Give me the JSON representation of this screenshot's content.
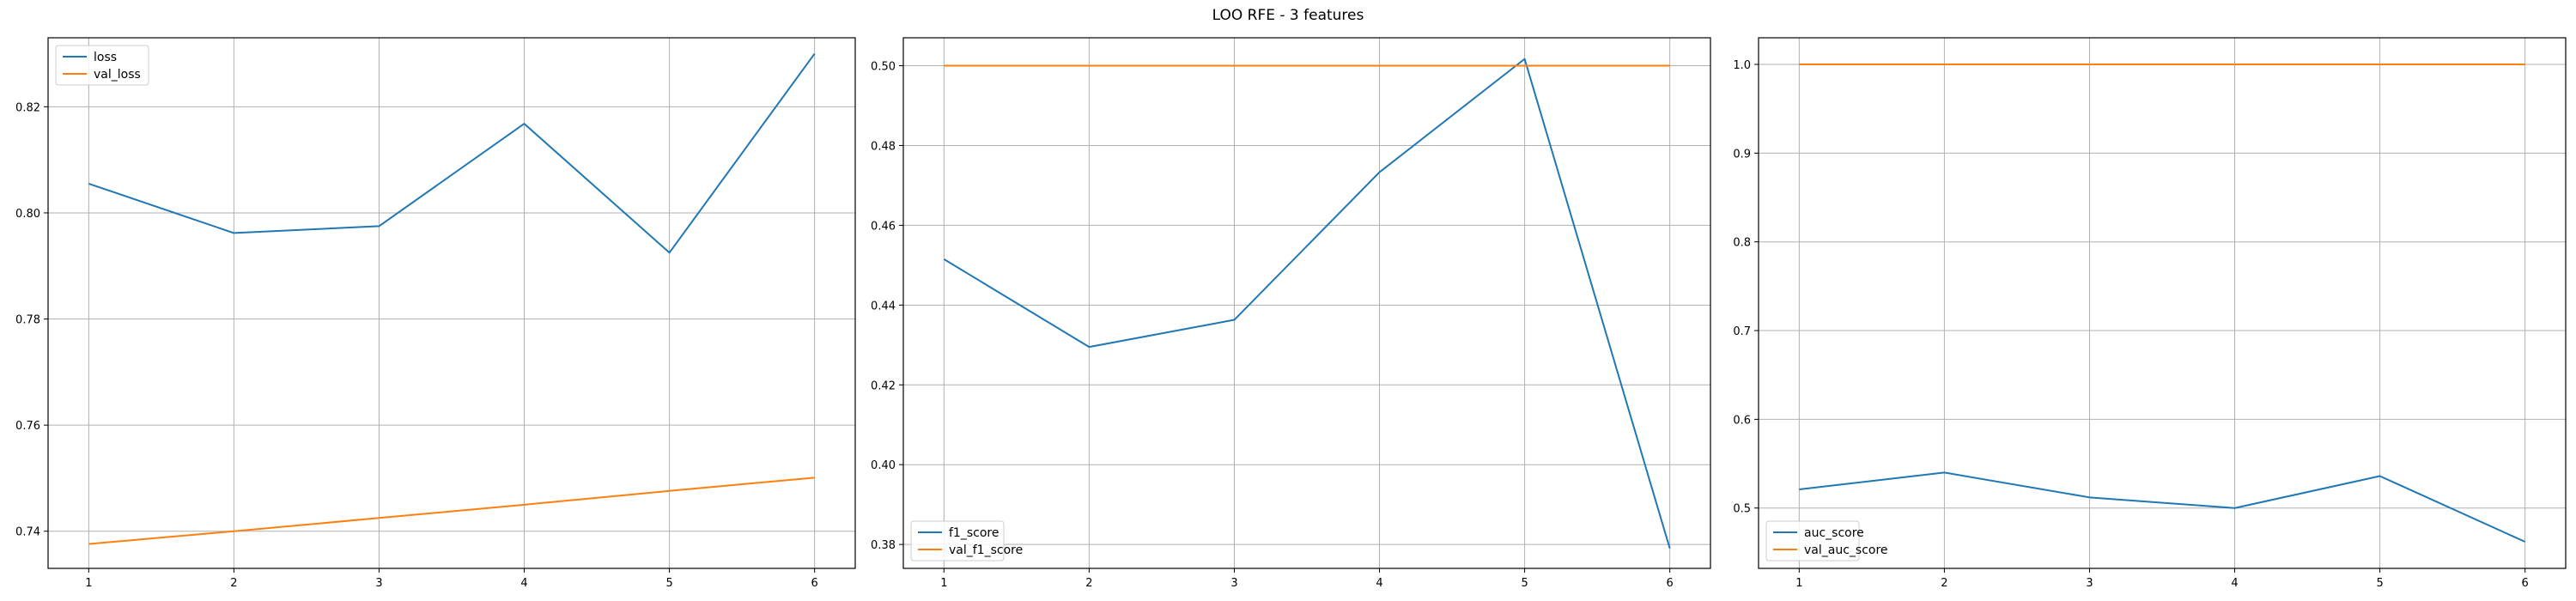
{
  "figure": {
    "title": "LOO RFE - 3 features"
  },
  "chart_data": [
    {
      "type": "line",
      "x": [
        1,
        2,
        3,
        4,
        5,
        6
      ],
      "ylim": [
        0.733,
        0.833
      ],
      "yticks": [
        0.74,
        0.76,
        0.78,
        0.8,
        0.82
      ],
      "ytick_labels": [
        "0.74",
        "0.76",
        "0.78",
        "0.80",
        "0.82"
      ],
      "xticks": [
        1,
        2,
        3,
        4,
        5,
        6
      ],
      "grid": true,
      "legend_position": "top-left",
      "series": [
        {
          "name": "loss",
          "color": "#1f77b4",
          "values": [
            0.8055,
            0.7962,
            0.7975,
            0.8168,
            0.7925,
            0.83
          ]
        },
        {
          "name": "val_loss",
          "color": "#ff7f0e",
          "values": [
            0.7376,
            0.74,
            0.7425,
            0.745,
            0.7476,
            0.7501
          ]
        }
      ]
    },
    {
      "type": "line",
      "x": [
        1,
        2,
        3,
        4,
        5,
        6
      ],
      "ylim": [
        0.374,
        0.507
      ],
      "yticks": [
        0.38,
        0.4,
        0.42,
        0.44,
        0.46,
        0.48,
        0.5
      ],
      "ytick_labels": [
        "0.38",
        "0.40",
        "0.42",
        "0.44",
        "0.46",
        "0.48",
        "0.50"
      ],
      "xticks": [
        1,
        2,
        3,
        4,
        5,
        6
      ],
      "grid": true,
      "legend_position": "bottom-left",
      "series": [
        {
          "name": "f1_score",
          "color": "#1f77b4",
          "values": [
            0.4515,
            0.4295,
            0.4363,
            0.4733,
            0.5017,
            0.379
          ]
        },
        {
          "name": "val_f1_score",
          "color": "#ff7f0e",
          "values": [
            0.5,
            0.5,
            0.5,
            0.5,
            0.5,
            0.5
          ]
        }
      ]
    },
    {
      "type": "line",
      "x": [
        1,
        2,
        3,
        4,
        5,
        6
      ],
      "ylim": [
        0.432,
        1.03
      ],
      "yticks": [
        0.5,
        0.6,
        0.7,
        0.8,
        0.9,
        1.0
      ],
      "ytick_labels": [
        "0.5",
        "0.6",
        "0.7",
        "0.8",
        "0.9",
        "1.0"
      ],
      "xticks": [
        1,
        2,
        3,
        4,
        5,
        6
      ],
      "grid": true,
      "legend_position": "bottom-left",
      "series": [
        {
          "name": "auc_score",
          "color": "#1f77b4",
          "values": [
            0.521,
            0.54,
            0.512,
            0.5,
            0.536,
            0.462
          ]
        },
        {
          "name": "val_auc_score",
          "color": "#ff7f0e",
          "values": [
            1.0,
            1.0,
            1.0,
            1.0,
            1.0,
            1.0
          ]
        }
      ]
    }
  ]
}
